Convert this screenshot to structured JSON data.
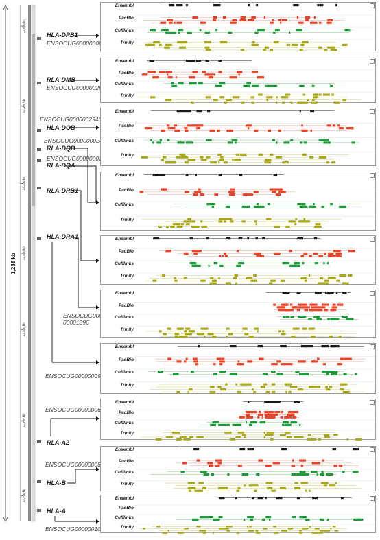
{
  "scale": {
    "total_label": "1,238 kb",
    "ticks": [
      {
        "label": "23,600 kb",
        "frac": 0.04
      },
      {
        "label": "23,400 kb",
        "frac": 0.195
      },
      {
        "label": "23,200 kb",
        "frac": 0.345
      },
      {
        "label": "23,000 kb",
        "frac": 0.48
      },
      {
        "label": "22,800 kb",
        "frac": 0.628
      },
      {
        "label": "22,600 kb",
        "frac": 0.805
      },
      {
        "label": "22,400 kb",
        "frac": 0.95
      }
    ]
  },
  "track_names": [
    "Ensembl",
    "PacBio",
    "Cufflinks",
    "Trinity"
  ],
  "colors": {
    "ensembl": "#1a1a1a",
    "pacbio": "#e8442a",
    "cufflinks": "#1e9a3a",
    "trinity": "#a8a61a",
    "cufflinks_thin": "#7cc98a",
    "trinity_thin": "#cfcd7a",
    "pacbio_thin": "#f2a090"
  },
  "genes": [
    {
      "name": "HLA-DPB1",
      "id": "ENSOCUG00000008721",
      "panel": 0
    },
    {
      "name": "RLA-DMB",
      "id": "ENSOCUG00000026567",
      "panel": 1
    },
    {
      "name": "HLA-DOB",
      "id": "ENSOCUG00000029437",
      "panel": 2
    },
    {
      "name": "RLA-DQB",
      "id": "ENSOCUG00000002485",
      "panel": 3
    },
    {
      "name": "RLA-DQA",
      "id": "ENSOCUG00000002480",
      "panel": 3
    },
    {
      "name": "RLA-DRB1",
      "id": "",
      "panel": 4
    },
    {
      "name": "HLA-DRA1",
      "id": "",
      "panel": 5
    },
    {
      "name": "",
      "id": "ENSOCUG00000001396",
      "panel": 5
    },
    {
      "name": "",
      "id": "ENSOCUG00000009103",
      "panel": 6
    },
    {
      "name": "RLA-A2",
      "id": "ENSOCUG00000006557",
      "panel": 7
    },
    {
      "name": "HLA-B",
      "id": "ENSOCUG00000008993",
      "panel": 8
    },
    {
      "name": "HLA-A",
      "id": "ENSOCUG00000010984",
      "panel": 9
    }
  ],
  "panels": [
    {
      "ensembl": [
        [
          0.0,
          0.95
        ]
      ],
      "pacbio": [
        [
          0.0,
          0.9
        ]
      ],
      "cufflinks": [
        [
          0.0,
          0.97
        ]
      ],
      "trinity": [
        [
          0.0,
          0.97
        ]
      ]
    },
    {
      "ensembl": [
        [
          0.0,
          0.55
        ]
      ],
      "pacbio": [
        [
          0.0,
          0.55
        ]
      ],
      "cufflinks": [
        [
          0.0,
          0.98
        ]
      ],
      "trinity": [
        [
          0.0,
          0.98
        ]
      ]
    },
    {
      "ensembl": [
        [
          0.0,
          0.95
        ]
      ],
      "pacbio": [
        [
          0.0,
          0.95
        ]
      ],
      "cufflinks": [
        [
          0.0,
          0.95
        ]
      ],
      "trinity": [
        [
          0.0,
          0.95
        ]
      ]
    },
    {
      "ensembl": [
        [
          0.0,
          0.72
        ]
      ],
      "pacbio": [
        [
          0.0,
          0.72
        ]
      ],
      "cufflinks": [
        [
          0.1,
          0.98
        ]
      ],
      "trinity": [
        [
          0.0,
          0.9
        ]
      ]
    },
    {
      "ensembl": [
        [
          0.05,
          0.9
        ]
      ],
      "pacbio": [
        [
          0.1,
          0.95
        ]
      ],
      "cufflinks": [
        [
          0.1,
          0.95
        ]
      ],
      "trinity": [
        [
          0.0,
          0.98
        ]
      ]
    },
    {
      "ensembl": [
        [
          0.55,
          0.98
        ]
      ],
      "pacbio": [
        [
          0.58,
          0.9
        ]
      ],
      "cufflinks": [
        [
          0.58,
          0.95
        ]
      ],
      "trinity": [
        [
          0.0,
          0.95
        ]
      ]
    },
    {
      "ensembl": [
        [
          0.05,
          0.98
        ]
      ],
      "pacbio": [
        [
          0.05,
          0.98
        ]
      ],
      "cufflinks": [
        [
          0.05,
          0.98
        ]
      ],
      "trinity": [
        [
          0.05,
          0.98
        ]
      ]
    },
    {
      "ensembl": [
        [
          0.42,
          0.72
        ]
      ],
      "pacbio": [
        [
          0.42,
          0.72
        ]
      ],
      "cufflinks": [
        [
          0.25,
          0.72
        ]
      ],
      "trinity": [
        [
          0.0,
          0.98
        ]
      ]
    },
    {
      "ensembl": [
        [
          0.1,
          0.98
        ]
      ],
      "pacbio": [
        [
          0.1,
          0.98
        ]
      ],
      "cufflinks": [
        [
          0.0,
          0.98
        ]
      ],
      "trinity": [
        [
          0.1,
          0.98
        ]
      ]
    },
    {
      "ensembl": [
        [
          0.3,
          0.95
        ]
      ],
      "pacbio": [],
      "cufflinks": [
        [
          0.15,
          0.98
        ]
      ],
      "trinity": [
        [
          0.0,
          0.9
        ]
      ]
    }
  ]
}
